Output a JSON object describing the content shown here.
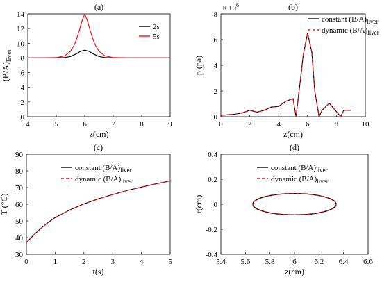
{
  "chart_data": [
    {
      "id": "a",
      "panel_label": "(a)",
      "type": "line",
      "xlabel": "z(cm)",
      "ylabel": {
        "main": "(B/A)",
        "sub": "liver"
      },
      "xlim": [
        4,
        9
      ],
      "ylim": [
        0,
        14
      ],
      "xticks": [
        4,
        5,
        6,
        7,
        8,
        9
      ],
      "yticks": [
        0,
        2,
        4,
        6,
        8,
        10,
        12,
        14
      ],
      "legend": {
        "placement": "top-right",
        "entries": [
          {
            "label": "2s",
            "color": "#000000",
            "dash": "none"
          },
          {
            "label": "5s",
            "color": "#e8141c",
            "dash": "none"
          }
        ]
      },
      "series": [
        {
          "name": "2s",
          "color": "#000000",
          "x": [
            4.0,
            4.5,
            5.0,
            5.3,
            5.5,
            5.7,
            5.85,
            6.0,
            6.15,
            6.3,
            6.5,
            6.7,
            7.0,
            7.5,
            8.0,
            8.5,
            9.0
          ],
          "y": [
            8.0,
            8.0,
            8.0,
            8.06,
            8.2,
            8.55,
            8.9,
            9.05,
            8.9,
            8.55,
            8.2,
            8.06,
            8.0,
            8.0,
            8.0,
            8.0,
            8.0
          ]
        },
        {
          "name": "5s",
          "color": "#e8141c",
          "x": [
            4.0,
            4.5,
            5.0,
            5.3,
            5.5,
            5.65,
            5.8,
            5.9,
            6.0,
            6.1,
            6.2,
            6.35,
            6.5,
            6.7,
            7.0,
            7.5,
            8.0,
            8.5,
            9.0
          ],
          "y": [
            8.0,
            8.0,
            8.05,
            8.3,
            8.9,
            9.9,
            11.6,
            13.0,
            14.0,
            13.0,
            11.6,
            9.9,
            8.9,
            8.3,
            8.05,
            8.0,
            8.0,
            8.0,
            8.0
          ]
        }
      ]
    },
    {
      "id": "b",
      "panel_label": "(b)",
      "type": "line",
      "xlabel": "z(cm)",
      "ylabel": {
        "main": "p (pa)",
        "sub": ""
      },
      "y_exponent": {
        "base": "× 10",
        "power": "6"
      },
      "xlim": [
        0,
        10
      ],
      "ylim": [
        0,
        8
      ],
      "xticks": [
        0,
        2,
        4,
        6,
        8,
        10
      ],
      "yticks": [
        0,
        2,
        4,
        6,
        8
      ],
      "legend": {
        "placement": "top-right",
        "entries": [
          {
            "label": "constant (B/A)",
            "sub": "liver",
            "color": "#000000",
            "dash": "none"
          },
          {
            "label": "dynamic (B/A)",
            "sub": "liver",
            "color": "#e8141c",
            "dash": "4,3"
          }
        ]
      },
      "series": [
        {
          "name": "constant (B/A)liver",
          "color": "#000000",
          "x": [
            0.0,
            1.0,
            1.5,
            2.0,
            2.5,
            3.0,
            3.5,
            4.0,
            4.5,
            5.0,
            5.2,
            5.5,
            5.7,
            6.0,
            6.3,
            6.5,
            6.8,
            7.0,
            7.5,
            8.0,
            8.3,
            8.5,
            9.0
          ],
          "y": [
            0.1,
            0.2,
            0.3,
            0.5,
            0.35,
            0.5,
            0.75,
            0.8,
            1.2,
            1.4,
            0.0,
            2.8,
            4.8,
            6.5,
            5.0,
            2.0,
            0.0,
            0.5,
            1.05,
            0.4,
            0.0,
            0.5,
            0.5
          ]
        },
        {
          "name": "dynamic (B/A)liver",
          "color": "#e8141c",
          "x": [
            0.0,
            1.0,
            1.5,
            2.0,
            2.5,
            3.0,
            3.5,
            4.0,
            4.5,
            5.0,
            5.2,
            5.5,
            5.7,
            6.0,
            6.3,
            6.5,
            6.8,
            7.0,
            7.5,
            8.0,
            8.3,
            8.5,
            9.0
          ],
          "y": [
            0.1,
            0.2,
            0.3,
            0.5,
            0.35,
            0.5,
            0.75,
            0.8,
            1.2,
            1.4,
            0.0,
            2.8,
            4.8,
            6.5,
            5.0,
            2.0,
            0.0,
            0.5,
            1.05,
            0.4,
            0.0,
            0.5,
            0.5
          ]
        }
      ]
    },
    {
      "id": "c",
      "panel_label": "(c)",
      "type": "line",
      "xlabel": "t(s)",
      "ylabel": {
        "main": "T (°C)",
        "sub": ""
      },
      "xlim": [
        0,
        5
      ],
      "ylim": [
        30,
        90
      ],
      "xticks": [
        0,
        1,
        2,
        3,
        4,
        5
      ],
      "yticks": [
        30,
        40,
        50,
        60,
        70,
        80,
        90
      ],
      "legend": {
        "placement": "top-center",
        "entries": [
          {
            "label": "constant (B/A)",
            "sub": "liver",
            "color": "#000000",
            "dash": "none"
          },
          {
            "label": "dynamic (B/A)",
            "sub": "liver",
            "color": "#e8141c",
            "dash": "4,3"
          }
        ]
      },
      "series": [
        {
          "name": "constant (B/A)liver",
          "color": "#000000",
          "x": [
            0,
            0.25,
            0.5,
            0.75,
            1.0,
            1.5,
            2.0,
            2.5,
            3.0,
            3.5,
            4.0,
            4.5,
            5.0
          ],
          "y": [
            37,
            41.5,
            45.5,
            49,
            52,
            56.5,
            60.2,
            63.2,
            65.8,
            68.2,
            70.3,
            72.2,
            74.0
          ]
        },
        {
          "name": "dynamic (B/A)liver",
          "color": "#e8141c",
          "x": [
            0,
            0.25,
            0.5,
            0.75,
            1.0,
            1.5,
            2.0,
            2.5,
            3.0,
            3.5,
            4.0,
            4.5,
            5.0
          ],
          "y": [
            37,
            41.5,
            45.5,
            49,
            52,
            56.5,
            60.2,
            63.2,
            65.8,
            68.2,
            70.3,
            72.2,
            74.0
          ]
        }
      ]
    },
    {
      "id": "d",
      "panel_label": "(d)",
      "type": "line",
      "xlabel": "z(cm)",
      "ylabel": {
        "main": "r(cm)",
        "sub": ""
      },
      "xlim": [
        5.4,
        6.6
      ],
      "ylim": [
        -0.4,
        0.4
      ],
      "xticks": [
        5.4,
        5.6,
        5.8,
        6.0,
        6.2,
        6.4,
        6.6
      ],
      "yticks": [
        -0.4,
        -0.2,
        0,
        0.2,
        0.4
      ],
      "legend": {
        "placement": "top-center",
        "entries": [
          {
            "label": "constant (B/A)",
            "sub": "liver",
            "color": "#000000",
            "dash": "none"
          },
          {
            "label": "dynamic (B/A)",
            "sub": "liver",
            "color": "#e8141c",
            "dash": "4,3"
          }
        ]
      },
      "ellipse": {
        "center_z": 6.0,
        "center_r": 0.0,
        "half_width_z": 0.34,
        "half_height_r": 0.085
      },
      "series": [
        {
          "name": "constant (B/A)liver",
          "color": "#000000"
        },
        {
          "name": "dynamic (B/A)liver",
          "color": "#e8141c"
        }
      ]
    }
  ]
}
